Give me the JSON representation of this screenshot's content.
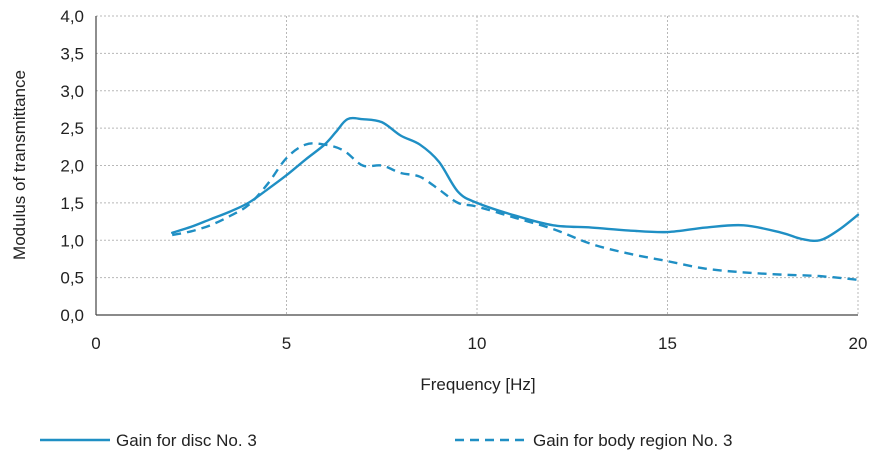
{
  "chart_data": {
    "type": "line",
    "title": "",
    "xlabel": "Frequency [Hz]",
    "ylabel": "Modulus of transmittance",
    "xlim": [
      0,
      20
    ],
    "ylim": [
      0,
      4
    ],
    "x_ticks": [
      0,
      5,
      10,
      15,
      20
    ],
    "x_tick_labels": [
      "0",
      "5",
      "10",
      "15",
      "20"
    ],
    "y_ticks": [
      0,
      0.5,
      1,
      1.5,
      2,
      2.5,
      3,
      3.5,
      4
    ],
    "y_tick_labels": [
      "0,0",
      "0,5",
      "1,0",
      "1,5",
      "2,0",
      "2,5",
      "3,0",
      "3,5",
      "4,0"
    ],
    "grid": true,
    "legend_position": "bottom",
    "series": [
      {
        "name": "Gain for disc No. 3",
        "style": "solid",
        "color": "#1f8fc4",
        "x": [
          2,
          2.5,
          3,
          3.5,
          4,
          4.5,
          5,
          5.5,
          6,
          6.3,
          6.6,
          7,
          7.5,
          8,
          8.5,
          9,
          9.5,
          10,
          11,
          12,
          13,
          14,
          15,
          16,
          17,
          18,
          18.5,
          19,
          19.5,
          20
        ],
        "y": [
          1.1,
          1.18,
          1.28,
          1.38,
          1.5,
          1.68,
          1.87,
          2.08,
          2.28,
          2.45,
          2.62,
          2.62,
          2.58,
          2.4,
          2.28,
          2.05,
          1.65,
          1.5,
          1.33,
          1.2,
          1.17,
          1.13,
          1.11,
          1.17,
          1.2,
          1.1,
          1.02,
          1.0,
          1.14,
          1.34
        ]
      },
      {
        "name": "Gain for body region No. 3",
        "style": "dashed",
        "color": "#1f8fc4",
        "x": [
          2,
          2.5,
          3,
          3.5,
          4,
          4.5,
          5,
          5.5,
          6,
          6.5,
          7,
          7.5,
          8,
          8.5,
          9,
          9.5,
          10,
          11,
          12,
          13,
          14,
          15,
          16,
          17,
          18,
          19,
          20
        ],
        "y": [
          1.07,
          1.12,
          1.2,
          1.32,
          1.47,
          1.75,
          2.1,
          2.28,
          2.28,
          2.2,
          2.0,
          2.0,
          1.9,
          1.85,
          1.68,
          1.5,
          1.45,
          1.3,
          1.15,
          0.95,
          0.82,
          0.72,
          0.62,
          0.57,
          0.54,
          0.52,
          0.47
        ]
      }
    ]
  }
}
